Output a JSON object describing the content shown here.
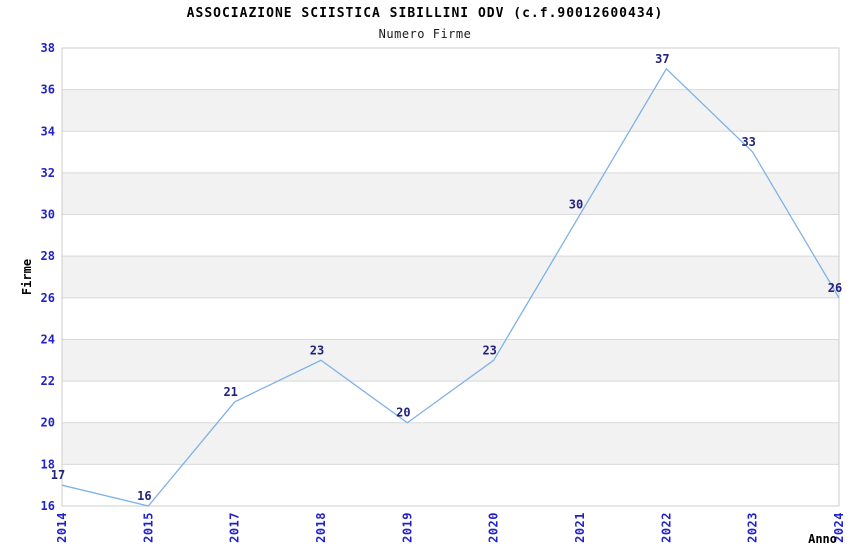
{
  "chart_data": {
    "type": "line",
    "title": "ASSOCIAZIONE SCIISTICA SIBILLINI ODV (c.f.90012600434)",
    "subtitle": "Numero Firme",
    "xlabel": "Anno",
    "ylabel": "Firme",
    "categories": [
      "2014",
      "2015",
      "2017",
      "2018",
      "2019",
      "2020",
      "2021",
      "2022",
      "2023",
      "2024"
    ],
    "values": [
      17,
      16,
      21,
      23,
      20,
      23,
      30,
      37,
      33,
      26
    ],
    "ylim": [
      16,
      38
    ],
    "y_ticks": [
      16,
      18,
      20,
      22,
      24,
      26,
      28,
      30,
      32,
      34,
      36,
      38
    ],
    "grid": true,
    "legend": "none",
    "colors": {
      "line": "#7fb2e8",
      "tick_label": "#2222cc",
      "data_label": "#22227e",
      "axis_label": "#000000",
      "title": "#000000",
      "band_light": "#ffffff",
      "band_dark": "#f2f2f2",
      "gridline": "#d9d9d9",
      "plot_border": "#cccccc",
      "background": "#ffffff"
    }
  }
}
